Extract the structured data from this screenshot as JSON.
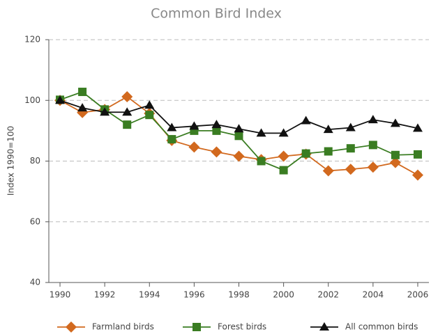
{
  "chart_data": {
    "type": "line",
    "title": "Common Bird Index",
    "y_label": "Index 1990=100",
    "x": [
      1990,
      1991,
      1992,
      1993,
      1994,
      1995,
      1996,
      1997,
      1998,
      1999,
      2000,
      2001,
      2002,
      2003,
      2004,
      2005,
      2006
    ],
    "series": [
      {
        "name": "Farmland birds",
        "color": "#d2691e",
        "marker": "diamond",
        "values": [
          100,
          96,
          97,
          101.2,
          95.7,
          86.8,
          84.6,
          83,
          81.6,
          80.5,
          81.6,
          82.3,
          76.8,
          77.3,
          78,
          79.5,
          75.4
        ]
      },
      {
        "name": "Forest birds",
        "color": "#3a7d22",
        "marker": "square",
        "values": [
          100.2,
          102.8,
          97,
          92,
          95.2,
          87.2,
          90,
          90,
          88.3,
          80,
          77,
          82.5,
          83.2,
          84.2,
          85.3,
          82,
          82.2
        ]
      },
      {
        "name": "All common birds",
        "color": "#111111",
        "marker": "triangle",
        "values": [
          100,
          97.5,
          96.1,
          96.1,
          98.4,
          91,
          91.5,
          92,
          90.6,
          89.2,
          89.2,
          93.3,
          90.4,
          91,
          93.6,
          92.4,
          90.8
        ]
      }
    ],
    "xlim": [
      1989.5,
      2006.5
    ],
    "xticks": [
      1990,
      1992,
      1994,
      1996,
      1998,
      2000,
      2002,
      2004,
      2006
    ],
    "ylim": [
      40,
      120
    ],
    "yticks": [
      40,
      60,
      80,
      100,
      120
    ],
    "grid": true,
    "legend": "bottom"
  }
}
